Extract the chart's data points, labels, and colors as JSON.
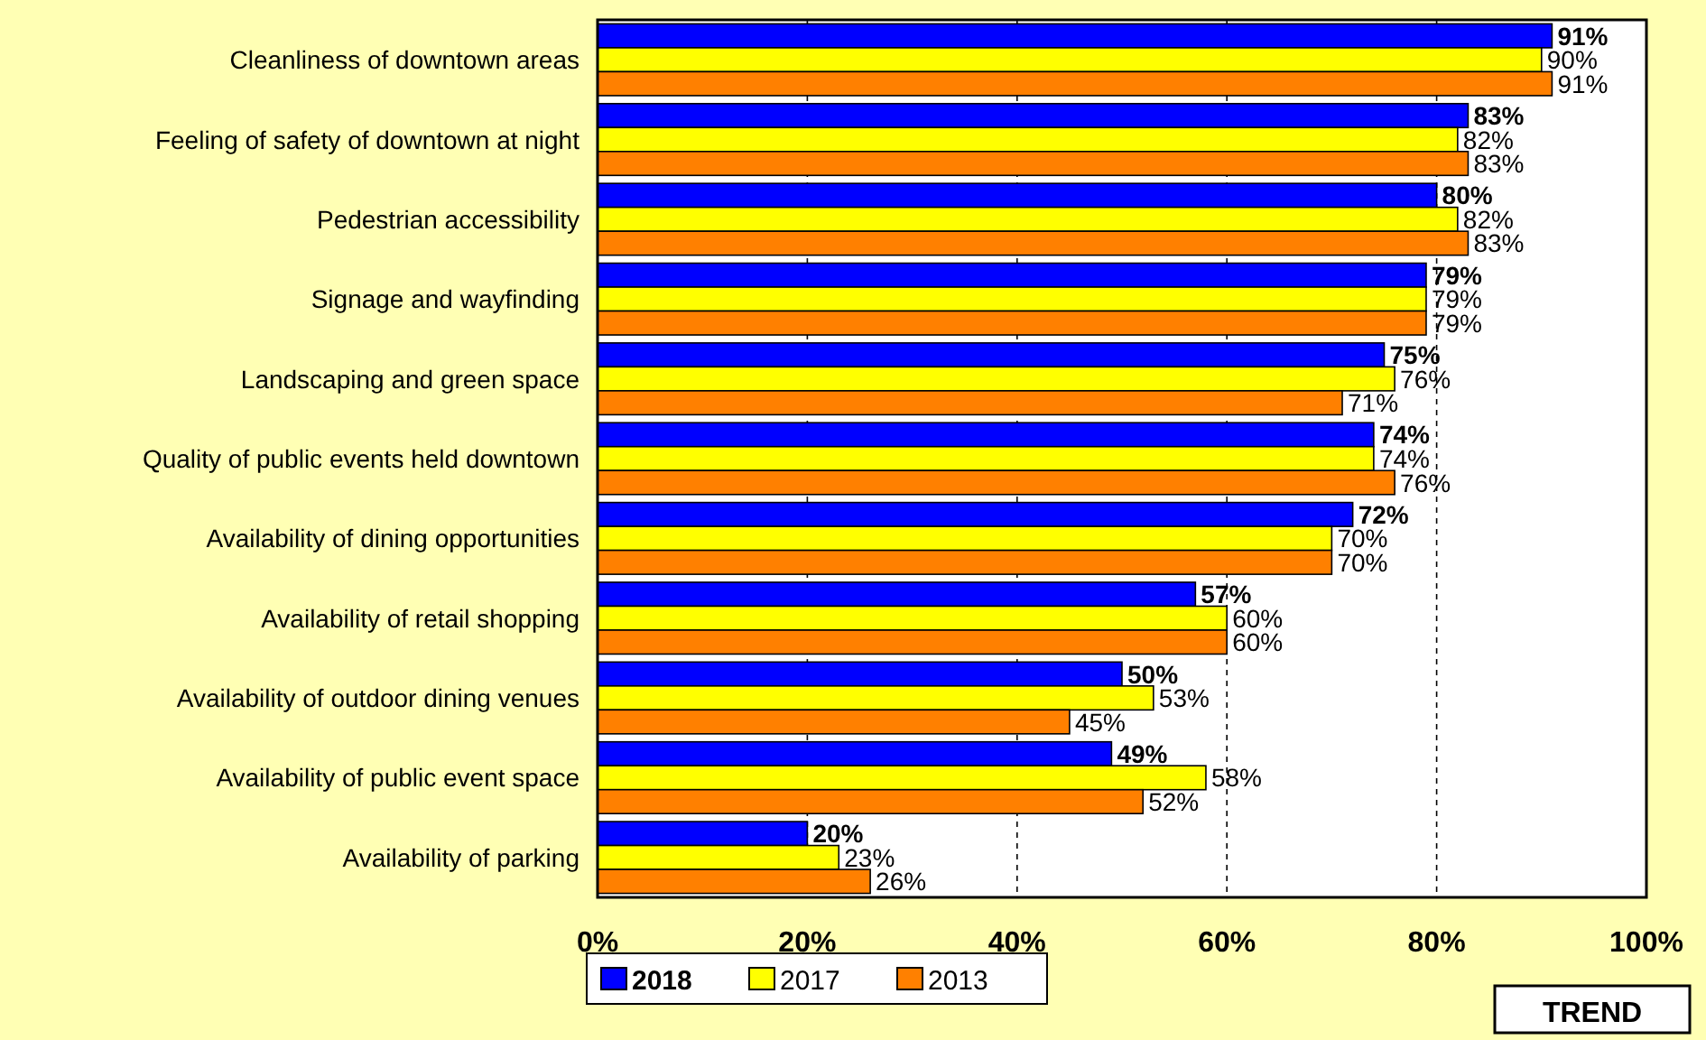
{
  "chart_data": {
    "type": "bar",
    "orientation": "horizontal",
    "categories": [
      "Cleanliness of downtown areas",
      "Feeling of safety of downtown at night",
      "Pedestrian accessibility",
      "Signage and wayfinding",
      "Landscaping and green space",
      "Quality of public events held downtown",
      "Availability of dining opportunities",
      "Availability of retail shopping",
      "Availability of outdoor dining venues",
      "Availability of public event space",
      "Availability of parking"
    ],
    "series": [
      {
        "name": "2018",
        "color": "#0000ff",
        "values": [
          91,
          83,
          80,
          79,
          75,
          74,
          72,
          57,
          50,
          49,
          20
        ],
        "value_labels": [
          "91%",
          "83%",
          "80%",
          "79%",
          "75%",
          "74%",
          "72%",
          "57%",
          "50%",
          "49%",
          "20%"
        ]
      },
      {
        "name": "2017",
        "color": "#ffff00",
        "values": [
          90,
          82,
          82,
          79,
          76,
          74,
          70,
          60,
          53,
          58,
          23
        ],
        "value_labels": [
          "90%",
          "82%",
          "82%",
          "79%",
          "76%",
          "74%",
          "70%",
          "60%",
          "53%",
          "58%",
          "23%"
        ]
      },
      {
        "name": "2013",
        "color": "#ff8000",
        "values": [
          91,
          83,
          83,
          79,
          71,
          76,
          70,
          60,
          45,
          52,
          26
        ],
        "value_labels": [
          "91%",
          "83%",
          "83%",
          "79%",
          "71%",
          "76%",
          "70%",
          "60%",
          "45%",
          "52%",
          "26%"
        ]
      }
    ],
    "xlim": [
      0,
      100
    ],
    "xticks": [
      {
        "value": 0,
        "label": "0%"
      },
      {
        "value": 20,
        "label": "20%"
      },
      {
        "value": 40,
        "label": "40%"
      },
      {
        "value": 60,
        "label": "60%"
      },
      {
        "value": 80,
        "label": "80%"
      },
      {
        "value": 100,
        "label": "100%"
      }
    ],
    "grid": "x",
    "legend": "bottom",
    "annotations": [
      "TREND"
    ]
  }
}
